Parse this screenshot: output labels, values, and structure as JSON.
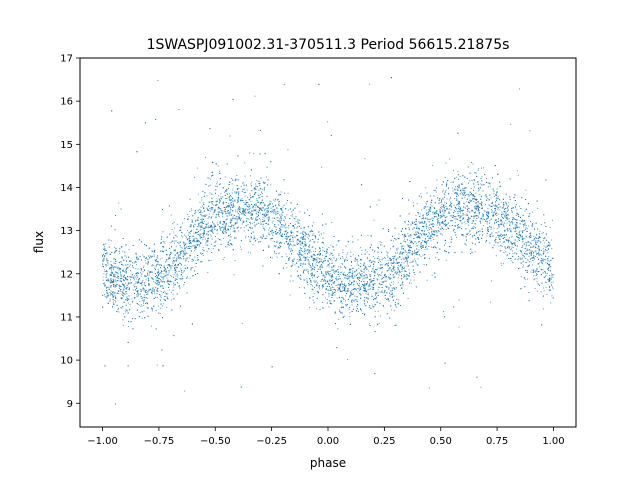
{
  "chart_data": {
    "type": "scatter",
    "title": "1SWASPJ091002.31-370511.3 Period 56615.21875s",
    "xlabel": "phase",
    "ylabel": "flux",
    "xlim": [
      -1.1,
      1.1
    ],
    "ylim": [
      8.45,
      17.0
    ],
    "xticks": [
      -1.0,
      -0.75,
      -0.5,
      -0.25,
      0.0,
      0.25,
      0.5,
      0.75,
      1.0
    ],
    "xtick_labels": [
      "−1.00",
      "−0.75",
      "−0.50",
      "−0.25",
      "0.00",
      "0.25",
      "0.50",
      "0.75",
      "1.00"
    ],
    "yticks": [
      9,
      10,
      11,
      12,
      13,
      14,
      15,
      16,
      17
    ],
    "ytick_labels": [
      "9",
      "10",
      "11",
      "12",
      "13",
      "14",
      "15",
      "16",
      "17"
    ],
    "grid": false,
    "legend": "none",
    "color": "#1f77b4",
    "series": [
      {
        "x": [
          -1.0,
          -0.95,
          -0.9,
          -0.85,
          -0.8,
          -0.75,
          -0.7,
          -0.65,
          -0.6,
          -0.55,
          -0.5,
          -0.45,
          -0.4,
          -0.35,
          -0.3,
          -0.25,
          -0.2,
          -0.15,
          -0.1,
          -0.05,
          0.0,
          0.05,
          0.1,
          0.15,
          0.2,
          0.25,
          0.3,
          0.35,
          0.4,
          0.45,
          0.5,
          0.55,
          0.6,
          0.65,
          0.7,
          0.75,
          0.8,
          0.85,
          0.9,
          0.95,
          1.0
        ],
        "y": [
          12.1,
          11.9,
          11.8,
          11.8,
          11.85,
          11.9,
          12.15,
          12.45,
          12.8,
          13.1,
          13.3,
          13.45,
          13.5,
          13.55,
          13.45,
          13.3,
          13.05,
          12.75,
          12.45,
          12.15,
          11.95,
          11.8,
          11.75,
          11.8,
          11.85,
          11.95,
          12.15,
          12.45,
          12.8,
          13.1,
          13.3,
          13.45,
          13.5,
          13.55,
          13.45,
          13.3,
          13.1,
          12.9,
          12.65,
          12.35,
          12.1
        ],
        "scatter_sd": 0.4,
        "point_count": 9000,
        "outlier_range": [
          8.8,
          16.6
        ]
      }
    ]
  }
}
